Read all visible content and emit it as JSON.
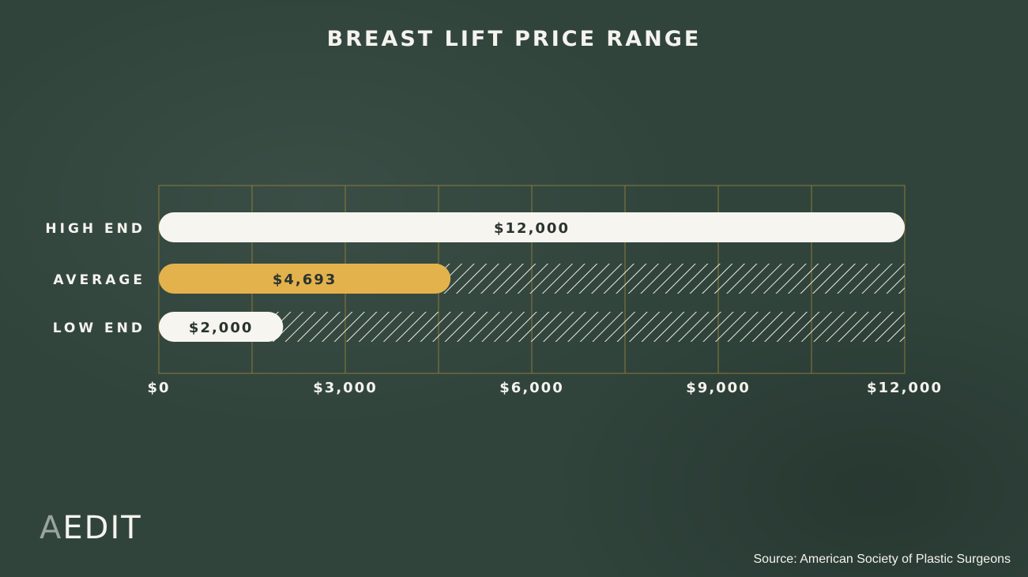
{
  "title": "BREAST LIFT PRICE RANGE",
  "logo": {
    "first_letter": "A",
    "rest": "EDIT"
  },
  "source": "Source: American Society of Plastic Surgeons",
  "colors": {
    "background": "#30443c",
    "bar_light": "#f7f5ef",
    "bar_accent": "#e3b24c",
    "grid": "#8a7a3c",
    "text": "#f5f3ee",
    "bar_label": "#2b332f"
  },
  "chart_data": {
    "type": "bar",
    "orientation": "horizontal",
    "title": "BREAST LIFT PRICE RANGE",
    "categories": [
      "HIGH END",
      "AVERAGE",
      "LOW END"
    ],
    "values": [
      12000,
      4693,
      2000
    ],
    "value_labels": [
      "$12,000",
      "$4,693",
      "$2,000"
    ],
    "xlim": [
      0,
      12000
    ],
    "x_ticks": [
      0,
      3000,
      6000,
      9000,
      12000
    ],
    "x_tick_labels": [
      "$0",
      "$3,000",
      "$6,000",
      "$9,000",
      "$12,000"
    ],
    "grid": true,
    "remainder_hatched": true
  }
}
